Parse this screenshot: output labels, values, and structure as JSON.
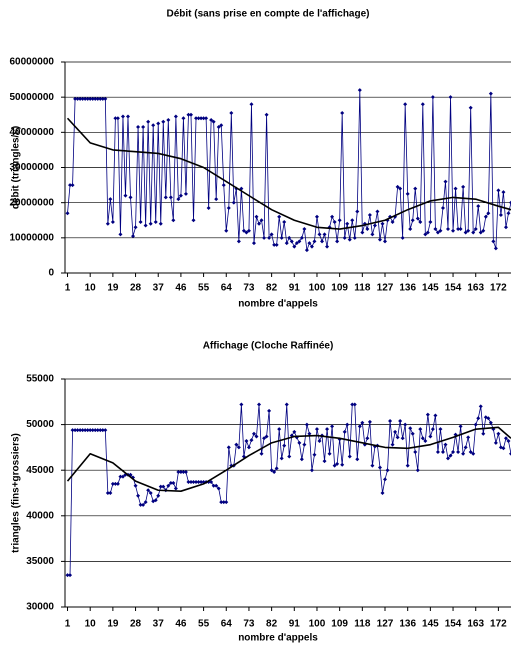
{
  "chart_data": [
    {
      "type": "line",
      "title": "Débit (sans prise en compte de l'affichage)",
      "xlabel": "nombre d'appels",
      "ylabel": "débit (triangles/s)",
      "color": "#000080",
      "grid": true,
      "xlim": [
        0,
        177
      ],
      "xticks": [
        1,
        10,
        19,
        28,
        37,
        46,
        55,
        64,
        73,
        82,
        91,
        100,
        109,
        118,
        127,
        136,
        145,
        154,
        163,
        172
      ],
      "ylim": [
        0,
        60000000
      ],
      "yticks": [
        0,
        10000000,
        20000000,
        30000000,
        40000000,
        50000000,
        60000000
      ],
      "x": [
        1,
        2,
        3,
        4,
        5,
        6,
        7,
        8,
        9,
        10,
        11,
        12,
        13,
        14,
        15,
        16,
        17,
        18,
        19,
        20,
        21,
        22,
        23,
        24,
        25,
        26,
        27,
        28,
        29,
        30,
        31,
        32,
        33,
        34,
        35,
        36,
        37,
        38,
        39,
        40,
        41,
        42,
        43,
        44,
        45,
        46,
        47,
        48,
        49,
        50,
        51,
        52,
        53,
        54,
        55,
        56,
        57,
        58,
        59,
        60,
        61,
        62,
        63,
        64,
        65,
        66,
        67,
        68,
        69,
        70,
        71,
        72,
        73,
        74,
        75,
        76,
        77,
        78,
        79,
        80,
        81,
        82,
        83,
        84,
        85,
        86,
        87,
        88,
        89,
        90,
        91,
        92,
        93,
        94,
        95,
        96,
        97,
        98,
        99,
        100,
        101,
        102,
        103,
        104,
        105,
        106,
        107,
        108,
        109,
        110,
        111,
        112,
        113,
        114,
        115,
        116,
        117,
        118,
        119,
        120,
        121,
        122,
        123,
        124,
        125,
        126,
        127,
        128,
        129,
        130,
        131,
        132,
        133,
        134,
        135,
        136,
        137,
        138,
        139,
        140,
        141,
        142,
        143,
        144,
        145,
        146,
        147,
        148,
        149,
        150,
        151,
        152,
        153,
        154,
        155,
        156,
        157,
        158,
        159,
        160,
        161,
        162,
        163,
        164,
        165,
        166,
        167,
        168,
        169,
        170,
        171,
        172,
        173,
        174,
        175,
        176,
        177
      ],
      "values": [
        17000000,
        25000000,
        25000000,
        49500000,
        49500000,
        49500000,
        49500000,
        49500000,
        49500000,
        49500000,
        49500000,
        49500000,
        49500000,
        49500000,
        49500000,
        49500000,
        14000000,
        21000000,
        14500000,
        44000000,
        44000000,
        11000000,
        44500000,
        22000000,
        44500000,
        21500000,
        10500000,
        13000000,
        41500000,
        14500000,
        41500000,
        13500000,
        43000000,
        14000000,
        42000000,
        14500000,
        42500000,
        14000000,
        43000000,
        21500000,
        43500000,
        21500000,
        15000000,
        44500000,
        21000000,
        22000000,
        44000000,
        22500000,
        45000000,
        45000000,
        15000000,
        44000000,
        44000000,
        44000000,
        44000000,
        44000000,
        18500000,
        43500000,
        43000000,
        21000000,
        41500000,
        42000000,
        25000000,
        12000000,
        18500000,
        45500000,
        20000000,
        24000000,
        9000000,
        24000000,
        12000000,
        11500000,
        12000000,
        48000000,
        8500000,
        16000000,
        14000000,
        15000000,
        10000000,
        45000000,
        10000000,
        11000000,
        8000000,
        8000000,
        16000000,
        10000000,
        14500000,
        8500000,
        10000000,
        9000000,
        7500000,
        8500000,
        9000000,
        10000000,
        12500000,
        6500000,
        8500000,
        7500000,
        9000000,
        16000000,
        11000000,
        9000000,
        11000000,
        7500000,
        13000000,
        16000000,
        14500000,
        9000000,
        15000000,
        45500000,
        10000000,
        14000000,
        9500000,
        15000000,
        10000000,
        17500000,
        52000000,
        11500000,
        14000000,
        12500000,
        16500000,
        11000000,
        13500000,
        17500000,
        9500000,
        14000000,
        9000000,
        15000000,
        16000000,
        14500000,
        16000000,
        24500000,
        24000000,
        10000000,
        48000000,
        22500000,
        12500000,
        15000000,
        24000000,
        15500000,
        14500000,
        48000000,
        11000000,
        11500000,
        14500000,
        50000000,
        12500000,
        11500000,
        12000000,
        18500000,
        26000000,
        12500000,
        50000000,
        12000000,
        24000000,
        12500000,
        12500000,
        24500000,
        11500000,
        12000000,
        47000000,
        11500000,
        12500000,
        19000000,
        11500000,
        12000000,
        16000000,
        17000000,
        51000000,
        9000000,
        7000000,
        23500000,
        16500000,
        23000000,
        13000000,
        17000000,
        20000000
      ],
      "trendline": {
        "color": "#000000",
        "x": [
          1,
          10,
          19,
          28,
          37,
          46,
          55,
          64,
          73,
          82,
          91,
          100,
          109,
          118,
          127,
          136,
          145,
          154,
          163,
          172,
          177
        ],
        "values": [
          44000000,
          37000000,
          35000000,
          34500000,
          34000000,
          32500000,
          30000000,
          26000000,
          22000000,
          18000000,
          15000000,
          13000000,
          12500000,
          13500000,
          15000000,
          18000000,
          20500000,
          21500000,
          21000000,
          19000000,
          18000000
        ]
      }
    },
    {
      "type": "line",
      "title": "Affichage (Cloche Raffinée)",
      "xlabel": "nombre d'appels",
      "ylabel": "triangles (fins+grossiers)",
      "color": "#000080",
      "grid": true,
      "xlim": [
        0,
        177
      ],
      "xticks": [
        1,
        10,
        19,
        28,
        37,
        46,
        55,
        64,
        73,
        82,
        91,
        100,
        109,
        118,
        127,
        136,
        145,
        154,
        163,
        172
      ],
      "ylim": [
        30000,
        55000
      ],
      "yticks": [
        30000,
        35000,
        40000,
        45000,
        50000,
        55000
      ],
      "x": [
        1,
        2,
        3,
        4,
        5,
        6,
        7,
        8,
        9,
        10,
        11,
        12,
        13,
        14,
        15,
        16,
        17,
        18,
        19,
        20,
        21,
        22,
        23,
        24,
        25,
        26,
        27,
        28,
        29,
        30,
        31,
        32,
        33,
        34,
        35,
        36,
        37,
        38,
        39,
        40,
        41,
        42,
        43,
        44,
        45,
        46,
        47,
        48,
        49,
        50,
        51,
        52,
        53,
        54,
        55,
        56,
        57,
        58,
        59,
        60,
        61,
        62,
        63,
        64,
        65,
        66,
        67,
        68,
        69,
        70,
        71,
        72,
        73,
        74,
        75,
        76,
        77,
        78,
        79,
        80,
        81,
        82,
        83,
        84,
        85,
        86,
        87,
        88,
        89,
        90,
        91,
        92,
        93,
        94,
        95,
        96,
        97,
        98,
        99,
        100,
        101,
        102,
        103,
        104,
        105,
        106,
        107,
        108,
        109,
        110,
        111,
        112,
        113,
        114,
        115,
        116,
        117,
        118,
        119,
        120,
        121,
        122,
        123,
        124,
        125,
        126,
        127,
        128,
        129,
        130,
        131,
        132,
        133,
        134,
        135,
        136,
        137,
        138,
        139,
        140,
        141,
        142,
        143,
        144,
        145,
        146,
        147,
        148,
        149,
        150,
        151,
        152,
        153,
        154,
        155,
        156,
        157,
        158,
        159,
        160,
        161,
        162,
        163,
        164,
        165,
        166,
        167,
        168,
        169,
        170,
        171,
        172,
        173,
        174,
        175,
        176,
        177
      ],
      "values": [
        33500,
        33500,
        49400,
        49400,
        49400,
        49400,
        49400,
        49400,
        49400,
        49400,
        49400,
        49400,
        49400,
        49400,
        49400,
        49400,
        42500,
        42500,
        43500,
        43500,
        43500,
        44300,
        44300,
        44500,
        44500,
        44500,
        44200,
        43300,
        42200,
        41200,
        41200,
        41500,
        42800,
        42500,
        41600,
        41700,
        42200,
        43200,
        43200,
        42800,
        43300,
        43600,
        43600,
        43000,
        44800,
        44800,
        44800,
        44800,
        43700,
        43700,
        43700,
        43700,
        43700,
        43700,
        43700,
        43700,
        43700,
        43700,
        43300,
        43300,
        43000,
        41500,
        41500,
        41500,
        47500,
        45500,
        45500,
        47800,
        47500,
        52200,
        46500,
        48200,
        47500,
        48300,
        49000,
        48700,
        52200,
        46800,
        48500,
        48700,
        51500,
        45000,
        44800,
        45200,
        49500,
        46300,
        47700,
        52200,
        46500,
        48800,
        49200,
        48600,
        48000,
        46200,
        47800,
        50000,
        49000,
        45000,
        46700,
        49500,
        48200,
        48800,
        46000,
        49500,
        46800,
        49800,
        45500,
        45700,
        48400,
        45600,
        49200,
        50000,
        46500,
        52200,
        52200,
        46200,
        49800,
        50200,
        47800,
        48500,
        50300,
        45500,
        47600,
        47700,
        45300,
        42500,
        44000,
        45000,
        50400,
        47800,
        49200,
        48600,
        50400,
        48500,
        50000,
        45500,
        49600,
        49000,
        47000,
        45000,
        49500,
        48500,
        48200,
        51100,
        48700,
        49500,
        51000,
        47000,
        49500,
        47000,
        47800,
        46300,
        46600,
        47000,
        48900,
        47000,
        49800,
        46800,
        47500,
        48600,
        47000,
        46800,
        50000,
        50700,
        52000,
        49000,
        50800,
        50700,
        50200,
        49500,
        48000,
        49000,
        47500,
        47400,
        48500,
        48200,
        46800
      ],
      "trendline": {
        "color": "#000000",
        "x": [
          1,
          10,
          19,
          28,
          37,
          46,
          55,
          64,
          73,
          82,
          91,
          100,
          109,
          118,
          127,
          136,
          145,
          154,
          163,
          172,
          177
        ],
        "values": [
          43800,
          46800,
          45800,
          43800,
          42800,
          42700,
          43500,
          45000,
          46600,
          48000,
          48700,
          48800,
          48500,
          48000,
          47500,
          47400,
          47800,
          48600,
          49500,
          49700,
          48500
        ]
      }
    }
  ]
}
